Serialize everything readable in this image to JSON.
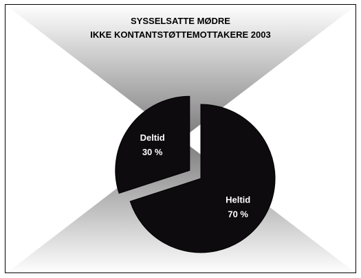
{
  "chart_data": {
    "type": "pie",
    "title_lines": [
      "SYSSELSATTE MØDRE",
      "IKKE KONTANTSTØTTEMOTTAKERE 2003"
    ],
    "slices": [
      {
        "label": "Heltid",
        "value": 70,
        "value_label": "70 %",
        "exploded": false
      },
      {
        "label": "Deltid",
        "value": 30,
        "value_label": "30 %",
        "exploded": true
      }
    ],
    "colors": {
      "slice_fill": "#0d0b0d",
      "slice_stroke": "#000000",
      "label_text": "#ffffff",
      "background_center": "#7a7a7a",
      "background_edge": "#ffffff"
    },
    "legend": "none"
  }
}
